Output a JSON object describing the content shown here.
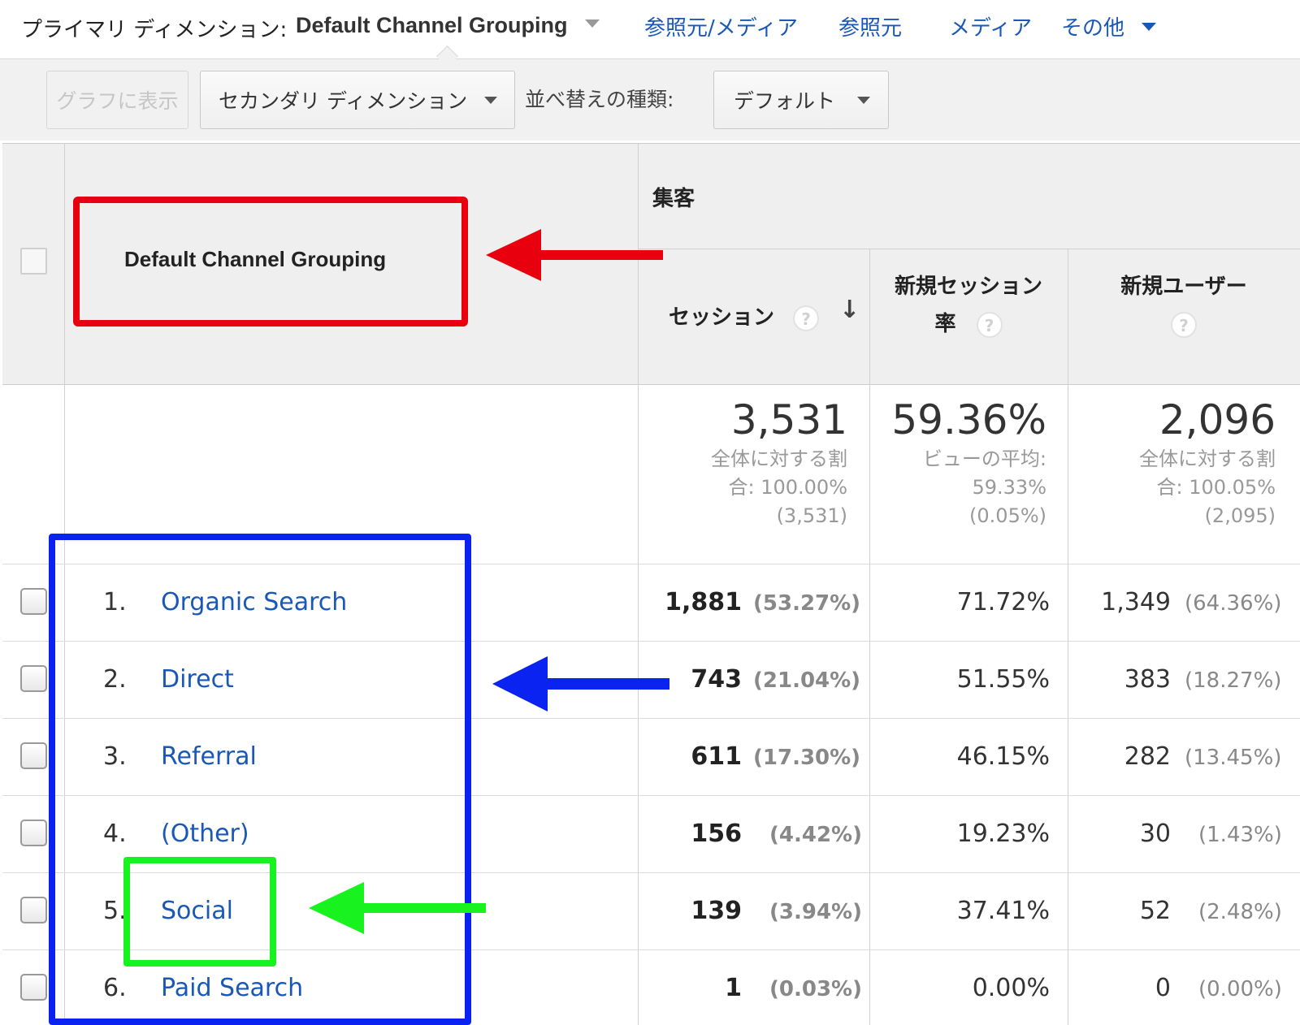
{
  "dimension_bar": {
    "primary_label": "プライマリ ディメンション:",
    "primary_value": "Default Channel Grouping",
    "links": [
      "参照元/メディア",
      "参照元",
      "メディア",
      "その他"
    ]
  },
  "toolbar": {
    "plot_button": "グラフに表示",
    "secondary_dimension": "セカンダリ ディメンション",
    "sort_label": "並べ替えの種類:",
    "sort_value": "デフォルト"
  },
  "table": {
    "dimension_header": "Default Channel Grouping",
    "group_header": "集客",
    "columns": {
      "sessions": "セッション",
      "new_session_rate_line1": "新規セッション",
      "new_session_rate_line2": "率",
      "new_users": "新規ユーザー"
    },
    "help_glyph": "?",
    "sort_glyph": "↓",
    "summary": {
      "sessions": {
        "value": "3,531",
        "line1": "全体に対する割",
        "line2": "合: 100.00%",
        "line3": "(3,531)"
      },
      "new_session_rate": {
        "value": "59.36%",
        "line1": "ビューの平均:",
        "line2": "59.33%",
        "line3": "(0.05%)"
      },
      "new_users": {
        "value": "2,096",
        "line1": "全体に対する割",
        "line2": "合: 100.05%",
        "line3": "(2,095)"
      }
    },
    "rows": [
      {
        "num": "1.",
        "name": "Organic Search",
        "sessions": "1,881",
        "sessions_pct": "(53.27%)",
        "rate": "71.72%",
        "users": "1,349",
        "users_pct": "(64.36%)"
      },
      {
        "num": "2.",
        "name": "Direct",
        "sessions": "743",
        "sessions_pct": "(21.04%)",
        "rate": "51.55%",
        "users": "383",
        "users_pct": "(18.27%)"
      },
      {
        "num": "3.",
        "name": "Referral",
        "sessions": "611",
        "sessions_pct": "(17.30%)",
        "rate": "46.15%",
        "users": "282",
        "users_pct": "(13.45%)"
      },
      {
        "num": "4.",
        "name": "(Other)",
        "sessions": "156",
        "sessions_pct": "(4.42%)",
        "rate": "19.23%",
        "users": "30",
        "users_pct": "(1.43%)"
      },
      {
        "num": "5.",
        "name": "Social",
        "sessions": "139",
        "sessions_pct": "(3.94%)",
        "rate": "37.41%",
        "users": "52",
        "users_pct": "(2.48%)"
      },
      {
        "num": "6.",
        "name": "Paid Search",
        "sessions": "1",
        "sessions_pct": "(0.03%)",
        "rate": "0.00%",
        "users": "0",
        "users_pct": "(0.00%)"
      }
    ]
  },
  "annotations": {
    "red": "#e8000e",
    "blue": "#0b23f0",
    "green": "#18f21f"
  }
}
